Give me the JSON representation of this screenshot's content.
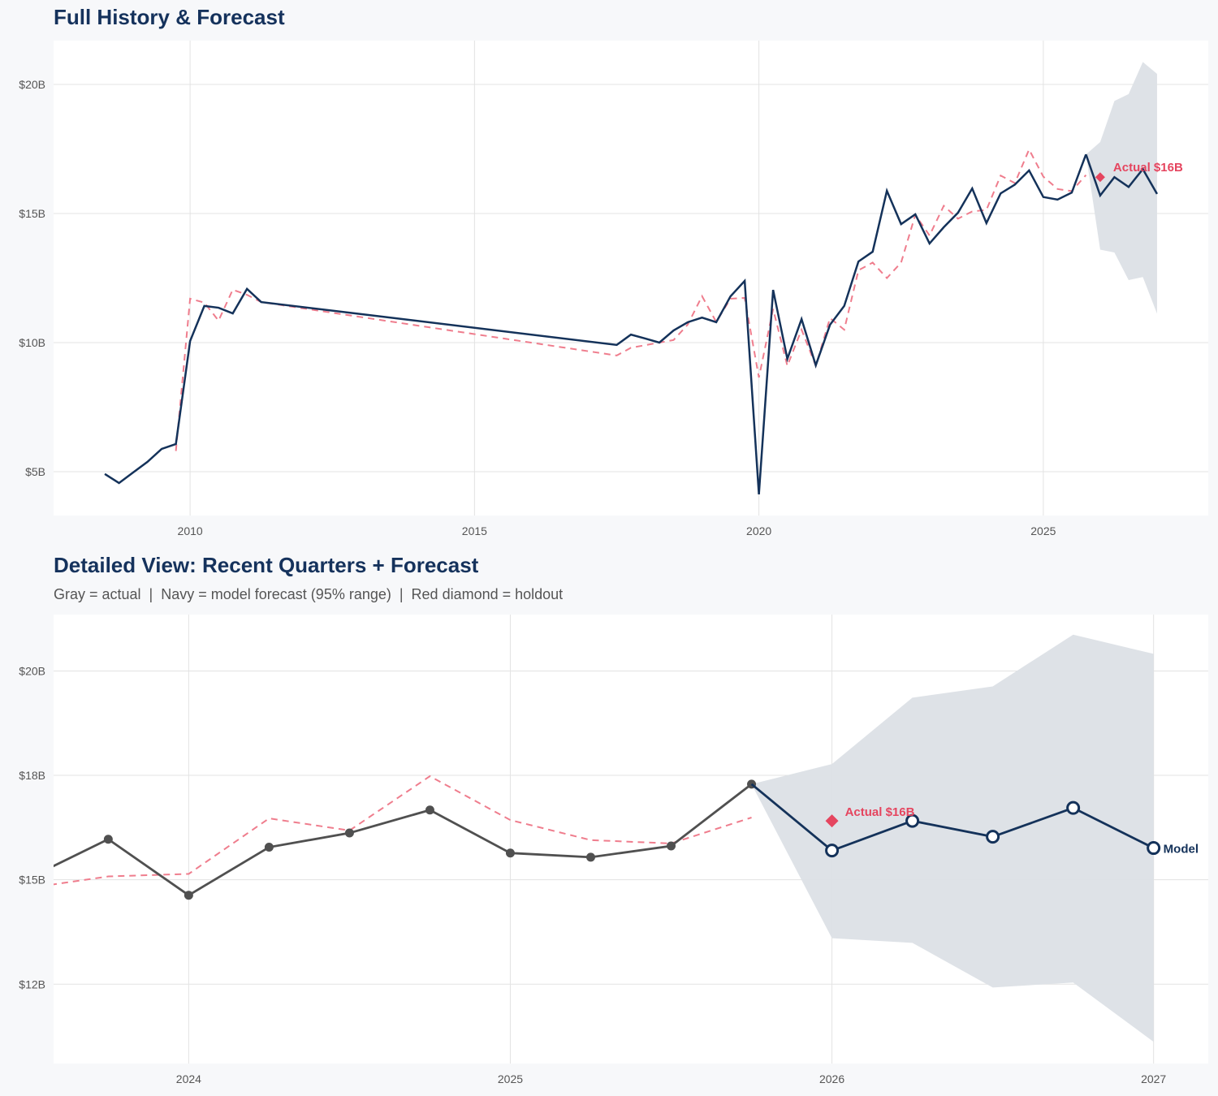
{
  "colors": {
    "navy": "#14325a",
    "red": "#e5455f",
    "fit_dashed": "#ef7d8d",
    "band": "#dce0e6",
    "actual_gray": "#505050",
    "grid": "#e3e3e3"
  },
  "chart_data": [
    {
      "type": "line",
      "title": "Full History & Forecast",
      "xlim": [
        2007.6,
        2027.9
      ],
      "ylim": [
        3.3,
        21.7
      ],
      "x_ticks": [
        2010,
        2015,
        2020,
        2025
      ],
      "x_tick_labels": [
        "2010",
        "2015",
        "2020",
        "2025"
      ],
      "y_ticks": [
        5,
        10,
        15,
        20
      ],
      "y_tick_labels": [
        "$5B",
        "$10B",
        "$15B",
        "$20B"
      ],
      "grid": true,
      "actual_color": "#14325a",
      "show_markers": false,
      "annotations": [
        {
          "text": "Actual $16B",
          "x": 2026.0,
          "y": 16.41
        }
      ]
    },
    {
      "type": "line",
      "title": "Detailed View: Recent Quarters + Forecast",
      "subtitle": "Gray = actual  |  Navy = model forecast (95% range)  |  Red diamond = holdout",
      "xlim": [
        2023.58,
        2027.17
      ],
      "ylim": [
        10.6,
        21.35
      ],
      "x_ticks": [
        2024,
        2025,
        2026,
        2027
      ],
      "x_tick_labels": [
        "2024",
        "2025",
        "2026",
        "2027"
      ],
      "y_ticks": [
        12.5,
        15,
        17.5,
        20
      ],
      "y_tick_labels": [
        "$12B",
        "$15B",
        "$18B",
        "$20B"
      ],
      "grid": true,
      "actual_color": "#505050",
      "show_markers": true,
      "annotations": [
        {
          "text": "Actual $16B",
          "x": 2026.0,
          "y": 16.41
        },
        {
          "text": "Model",
          "x": 2027.0,
          "y": 15.76
        }
      ]
    }
  ],
  "series": {
    "actual": {
      "x": [
        2008.5,
        2008.75,
        2009,
        2009.25,
        2009.5,
        2009.75,
        2010,
        2010.25,
        2010.5,
        2010.75,
        2011,
        2011.25,
        2017.5,
        2017.75,
        2018,
        2018.25,
        2018.5,
        2018.75,
        2019,
        2019.25,
        2019.5,
        2019.75,
        2020,
        2020.25,
        2020.5,
        2020.75,
        2021,
        2021.25,
        2021.5,
        2021.75,
        2022,
        2022.25,
        2022.5,
        2022.75,
        2023,
        2023.25,
        2023.5,
        2023.75,
        2024,
        2024.25,
        2024.5,
        2024.75,
        2025,
        2025.25,
        2025.5,
        2025.75
      ],
      "values": [
        4.91,
        4.56,
        4.97,
        5.38,
        5.88,
        6.07,
        10.06,
        11.42,
        11.35,
        11.13,
        12.08,
        11.57,
        9.91,
        10.31,
        10.16,
        10.0,
        10.47,
        10.79,
        10.97,
        10.79,
        11.79,
        12.39,
        4.12,
        12.04,
        9.37,
        10.91,
        9.12,
        10.69,
        11.42,
        13.14,
        13.52,
        15.88,
        14.59,
        14.97,
        13.84,
        14.47,
        15.03,
        15.97,
        14.63,
        15.78,
        16.12,
        16.67,
        15.64,
        15.54,
        15.81,
        17.29
      ]
    },
    "fitted": {
      "x": [
        2009.75,
        2010,
        2010.25,
        2010.5,
        2010.75,
        2011,
        2011.25,
        2017.5,
        2017.75,
        2018,
        2018.25,
        2018.5,
        2018.75,
        2019,
        2019.25,
        2019.5,
        2019.75,
        2020,
        2020.25,
        2020.5,
        2020.75,
        2021,
        2021.25,
        2021.5,
        2021.75,
        2022,
        2022.25,
        2022.5,
        2022.75,
        2023,
        2023.25,
        2023.5,
        2023.75,
        2024,
        2024.25,
        2024.5,
        2024.75,
        2025,
        2025.25,
        2025.5,
        2025.75
      ],
      "values": [
        5.8,
        11.7,
        11.55,
        10.85,
        12.05,
        11.85,
        11.57,
        9.5,
        9.8,
        9.9,
        10.0,
        10.1,
        10.7,
        11.8,
        10.8,
        11.7,
        11.73,
        8.65,
        11.3,
        9.1,
        10.5,
        9.1,
        10.95,
        10.5,
        12.8,
        13.1,
        12.5,
        13.1,
        14.95,
        14.15,
        15.3,
        14.8,
        15.08,
        15.14,
        16.47,
        16.18,
        17.48,
        16.43,
        15.95,
        15.87,
        16.49
      ]
    },
    "forecast": {
      "x": [
        2025.75,
        2026,
        2026.25,
        2026.5,
        2026.75,
        2027
      ],
      "values": [
        17.29,
        15.7,
        16.41,
        16.03,
        16.72,
        15.76
      ]
    },
    "band_95": {
      "x": [
        2025.75,
        2026,
        2026.25,
        2026.5,
        2026.75,
        2027
      ],
      "lower": [
        17.29,
        13.6,
        13.49,
        12.42,
        12.54,
        11.12
      ],
      "upper": [
        17.29,
        17.77,
        19.36,
        19.63,
        20.87,
        20.41
      ]
    },
    "holdout": {
      "x": 2026.0,
      "value": 16.41
    }
  }
}
